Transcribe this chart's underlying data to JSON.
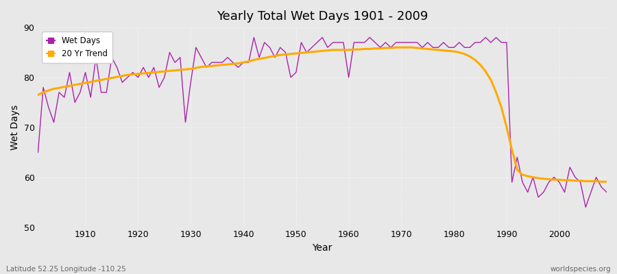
{
  "title": "Yearly Total Wet Days 1901 - 2009",
  "xlabel": "Year",
  "ylabel": "Wet Days",
  "footnote_left": "Latitude 52.25 Longitude -110.25",
  "footnote_right": "worldspecies.org",
  "ylim": [
    50,
    90
  ],
  "yticks": [
    50,
    60,
    70,
    80,
    90
  ],
  "bg_color": "#e8e8e8",
  "plot_bg_color": "#e8e8e8",
  "line_color": "#aa22aa",
  "trend_color": "#ffaa00",
  "years": [
    1901,
    1902,
    1903,
    1904,
    1905,
    1906,
    1907,
    1908,
    1909,
    1910,
    1911,
    1912,
    1913,
    1914,
    1915,
    1916,
    1917,
    1918,
    1919,
    1920,
    1921,
    1922,
    1923,
    1924,
    1925,
    1926,
    1927,
    1928,
    1929,
    1930,
    1931,
    1932,
    1933,
    1934,
    1935,
    1936,
    1937,
    1938,
    1939,
    1940,
    1941,
    1942,
    1943,
    1944,
    1945,
    1946,
    1947,
    1948,
    1949,
    1950,
    1951,
    1952,
    1953,
    1954,
    1955,
    1956,
    1957,
    1958,
    1959,
    1960,
    1961,
    1962,
    1963,
    1964,
    1965,
    1966,
    1967,
    1968,
    1969,
    1970,
    1971,
    1972,
    1973,
    1974,
    1975,
    1976,
    1977,
    1978,
    1979,
    1980,
    1981,
    1982,
    1983,
    1984,
    1985,
    1986,
    1987,
    1988,
    1989,
    1990,
    1991,
    1992,
    1993,
    1994,
    1995,
    1996,
    1997,
    1998,
    1999,
    2000,
    2001,
    2002,
    2003,
    2004,
    2005,
    2006,
    2007,
    2008,
    2009
  ],
  "wet_days": [
    65,
    78,
    74,
    71,
    77,
    76,
    81,
    75,
    77,
    81,
    76,
    84,
    77,
    77,
    84,
    82,
    79,
    80,
    81,
    80,
    82,
    80,
    82,
    78,
    80,
    85,
    83,
    84,
    71,
    79,
    86,
    84,
    82,
    83,
    83,
    83,
    84,
    83,
    82,
    83,
    83,
    88,
    84,
    87,
    86,
    84,
    86,
    85,
    80,
    81,
    87,
    85,
    86,
    87,
    88,
    86,
    87,
    87,
    87,
    80,
    87,
    87,
    87,
    88,
    87,
    86,
    87,
    86,
    87,
    87,
    87,
    87,
    87,
    86,
    87,
    86,
    86,
    87,
    86,
    86,
    87,
    86,
    86,
    87,
    87,
    88,
    87,
    88,
    87,
    87,
    59,
    64,
    59,
    57,
    60,
    56,
    57,
    59,
    60,
    59,
    57,
    62,
    60,
    59,
    54,
    57,
    60,
    58,
    57
  ],
  "trend_years": [
    1901,
    1902,
    1903,
    1904,
    1905,
    1906,
    1907,
    1908,
    1909,
    1910,
    1911,
    1912,
    1913,
    1914,
    1915,
    1916,
    1917,
    1918,
    1919,
    1920,
    1921,
    1922,
    1923,
    1924,
    1925,
    1926,
    1927,
    1928,
    1929,
    1930,
    1931,
    1932,
    1933,
    1934,
    1935,
    1936,
    1937,
    1938,
    1939,
    1940,
    1941,
    1942,
    1943,
    1944,
    1945,
    1946,
    1947,
    1948,
    1949,
    1950,
    1951,
    1952,
    1953,
    1954,
    1955,
    1956,
    1957,
    1958,
    1959,
    1960,
    1961,
    1962,
    1963,
    1964,
    1965,
    1966,
    1967,
    1968,
    1969,
    1970,
    1971,
    1972,
    1973,
    1974,
    1975,
    1976,
    1977,
    1978,
    1979,
    1980,
    1981,
    1982,
    1983,
    1984,
    1985,
    1986,
    1987,
    1988,
    1989,
    1990,
    1991,
    1992,
    1993,
    1994,
    1995,
    1996,
    1997,
    1998,
    1999,
    2000,
    2001,
    2002,
    2003,
    2004,
    2005,
    2006,
    2007,
    2008,
    2009
  ],
  "trend_values": [
    76.5,
    77.0,
    77.4,
    77.7,
    77.9,
    78.1,
    78.3,
    78.5,
    78.7,
    78.9,
    79.1,
    79.3,
    79.5,
    79.7,
    79.9,
    80.1,
    80.3,
    80.5,
    80.6,
    80.7,
    80.8,
    80.9,
    81.0,
    81.1,
    81.2,
    81.3,
    81.4,
    81.5,
    81.6,
    81.7,
    81.9,
    82.1,
    82.2,
    82.3,
    82.4,
    82.5,
    82.6,
    82.7,
    82.8,
    83.0,
    83.2,
    83.5,
    83.7,
    83.9,
    84.1,
    84.3,
    84.5,
    84.6,
    84.7,
    84.8,
    84.9,
    85.0,
    85.1,
    85.2,
    85.3,
    85.4,
    85.5,
    85.5,
    85.5,
    85.5,
    85.6,
    85.6,
    85.7,
    85.7,
    85.8,
    85.8,
    85.9,
    85.9,
    86.0,
    86.0,
    86.0,
    86.0,
    85.9,
    85.8,
    85.7,
    85.6,
    85.5,
    85.4,
    85.3,
    85.2,
    85.0,
    84.7,
    84.2,
    83.5,
    82.5,
    81.2,
    79.5,
    77.0,
    74.0,
    70.0,
    65.5,
    61.5,
    60.5,
    60.2,
    60.0,
    59.8,
    59.7,
    59.6,
    59.5,
    59.5,
    59.4,
    59.4,
    59.3,
    59.3,
    59.2,
    59.2,
    59.2,
    59.1,
    59.1
  ]
}
